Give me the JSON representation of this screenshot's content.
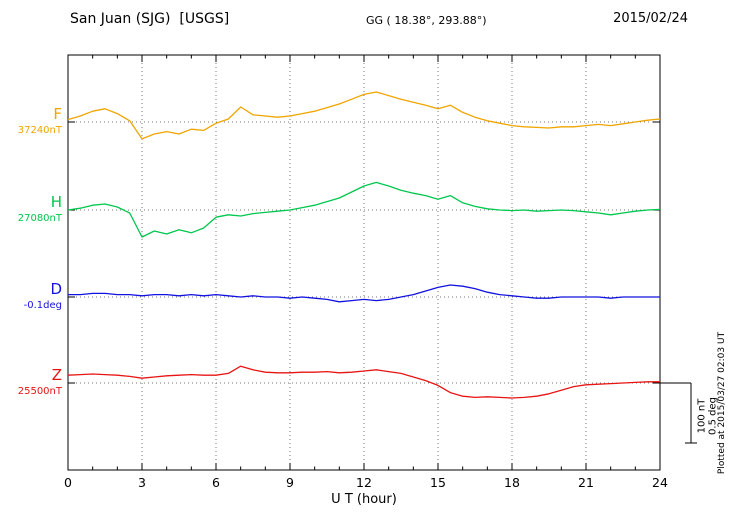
{
  "header": {
    "station": "San Juan (SJG)  [USGS]",
    "coords": "GG ( 18.38°, 293.88°)",
    "date": "2015/02/24"
  },
  "axis": {
    "xlabel": "U T (hour)",
    "xticks": [
      0,
      3,
      6,
      9,
      12,
      15,
      18,
      21,
      24
    ],
    "x_range": [
      0,
      24
    ]
  },
  "channels": [
    {
      "name": "F",
      "baseline_label": "37240nT",
      "color": "#f0a500"
    },
    {
      "name": "H",
      "baseline_label": "27080nT",
      "color": "#00c74e"
    },
    {
      "name": "D",
      "baseline_label": "-0.1deg",
      "color": "#1212e0"
    },
    {
      "name": "Z",
      "baseline_label": "25500nT",
      "color": "#e81414"
    }
  ],
  "scalebar": {
    "nt": "100 nT",
    "deg": "0.5 deg"
  },
  "footer": {
    "plotted_at": "Plotted at 2015/03/27 02:03 UT"
  },
  "chart_data": {
    "type": "line",
    "title": "San Juan (SJG) [USGS] magnetogram, 2015/02/24",
    "xlabel": "U T (hour)",
    "x_range": [
      0,
      24
    ],
    "grid": "dotted vertical every 3h, dotted horizontal at each channel baseline",
    "scale_division": {
      "nT": 100,
      "deg": 0.5
    },
    "x_hours": [
      0,
      0.5,
      1,
      1.5,
      2,
      2.5,
      3,
      3.5,
      4,
      4.5,
      5,
      5.5,
      6,
      6.5,
      7,
      7.5,
      8,
      8.5,
      9,
      9.5,
      10,
      10.5,
      11,
      11.5,
      12,
      12.5,
      13,
      13.5,
      14,
      14.5,
      15,
      15.5,
      16,
      16.5,
      17,
      17.5,
      18,
      18.5,
      19,
      19.5,
      20,
      20.5,
      21,
      21.5,
      22,
      22.5,
      23,
      23.5,
      24
    ],
    "series": [
      {
        "name": "F",
        "unit": "nT",
        "baseline": 37240,
        "offsets_from_baseline": [
          4,
          10,
          18,
          22,
          14,
          2,
          -28,
          -20,
          -16,
          -20,
          -12,
          -14,
          -2,
          5,
          25,
          12,
          10,
          8,
          10,
          14,
          18,
          24,
          30,
          38,
          46,
          50,
          44,
          38,
          33,
          28,
          22,
          28,
          16,
          8,
          2,
          -2,
          -6,
          -8,
          -9,
          -10,
          -8,
          -8,
          -6,
          -4,
          -6,
          -3,
          0,
          3,
          5
        ]
      },
      {
        "name": "H",
        "unit": "nT",
        "baseline": 27080,
        "offsets_from_baseline": [
          0,
          3,
          8,
          10,
          5,
          -5,
          -45,
          -35,
          -40,
          -33,
          -38,
          -30,
          -12,
          -8,
          -10,
          -6,
          -4,
          -2,
          0,
          4,
          8,
          14,
          20,
          30,
          40,
          46,
          40,
          33,
          28,
          24,
          18,
          24,
          12,
          6,
          2,
          0,
          -1,
          0,
          -2,
          -1,
          0,
          -1,
          -3,
          -5,
          -8,
          -5,
          -2,
          0,
          1
        ]
      },
      {
        "name": "D",
        "unit": "deg",
        "baseline": -0.1,
        "offsets_from_baseline": [
          0.02,
          0.02,
          0.03,
          0.03,
          0.02,
          0.02,
          0.01,
          0.02,
          0.02,
          0.01,
          0.02,
          0.01,
          0.02,
          0.01,
          0,
          0.01,
          0,
          0,
          -0.01,
          0,
          -0.01,
          -0.02,
          -0.04,
          -0.03,
          -0.02,
          -0.03,
          -0.02,
          0,
          0.02,
          0.05,
          0.08,
          0.1,
          0.09,
          0.07,
          0.04,
          0.02,
          0.01,
          0,
          -0.01,
          -0.01,
          0,
          0,
          0,
          0,
          -0.01,
          0,
          0,
          0,
          0
        ]
      },
      {
        "name": "Z",
        "unit": "nT",
        "baseline": 25500,
        "offsets_from_baseline": [
          13,
          14,
          15,
          14,
          13,
          11,
          8,
          10,
          12,
          13,
          14,
          13,
          13,
          16,
          28,
          22,
          18,
          17,
          17,
          18,
          18,
          19,
          17,
          18,
          20,
          22,
          19,
          16,
          10,
          4,
          -4,
          -16,
          -22,
          -24,
          -23,
          -24,
          -25,
          -24,
          -22,
          -18,
          -12,
          -6,
          -3,
          -2,
          -1,
          0,
          1,
          2,
          2
        ]
      }
    ]
  }
}
